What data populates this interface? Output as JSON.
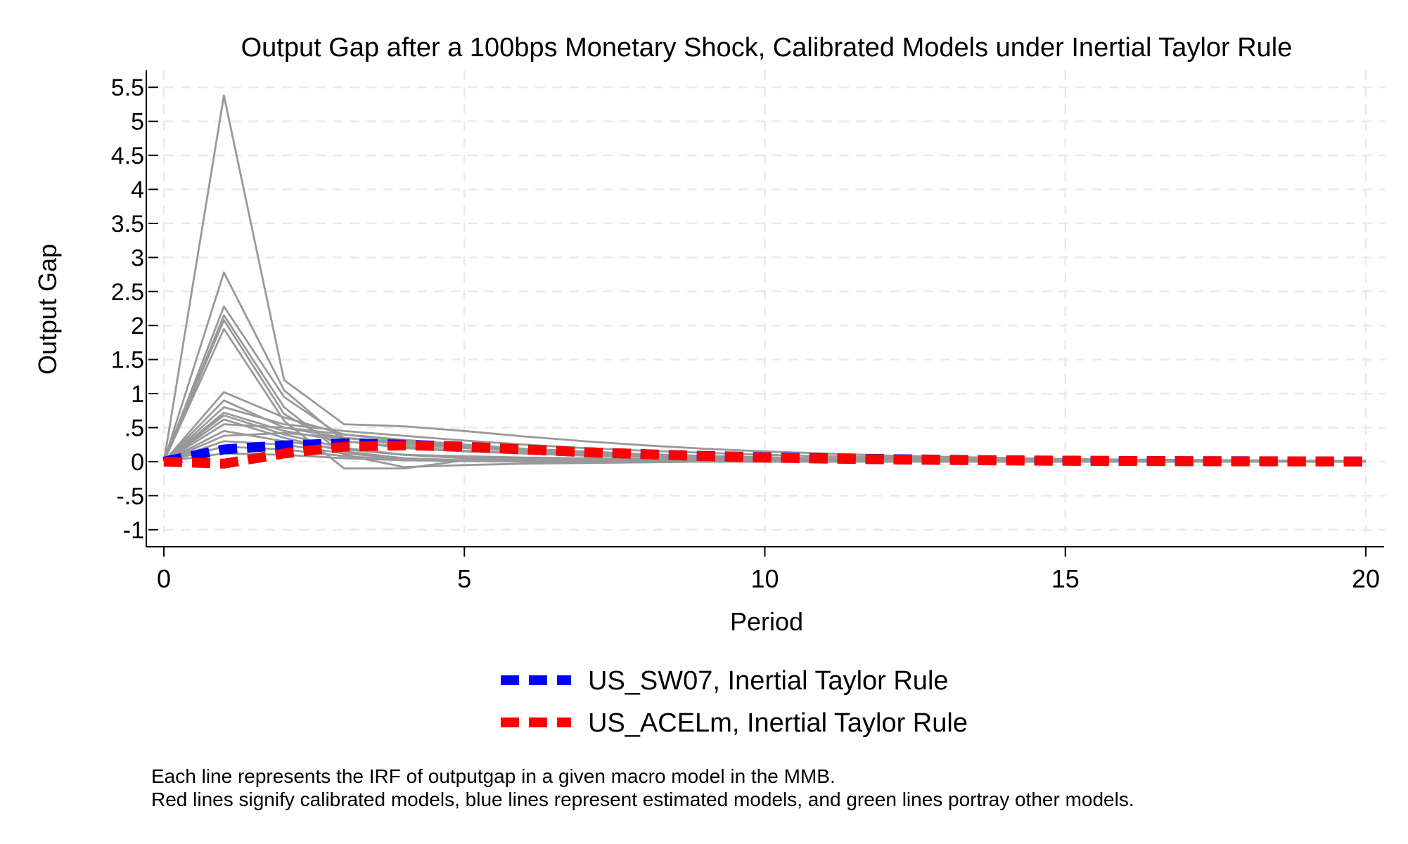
{
  "chart_data": {
    "type": "line",
    "title": "Output Gap after a 100bps Monetary Shock, Calibrated Models under Inertial Taylor Rule",
    "xlabel": "Period",
    "ylabel": "Output Gap",
    "xlim": [
      0,
      20
    ],
    "ylim": [
      -1,
      5.5
    ],
    "x_ticks": [
      0,
      5,
      10,
      15,
      20
    ],
    "x_tick_labels": [
      "0",
      "5",
      "10",
      "15",
      "20"
    ],
    "y_ticks": [
      -1,
      -0.5,
      0,
      0.5,
      1,
      1.5,
      2,
      2.5,
      3,
      3.5,
      4,
      4.5,
      5,
      5.5
    ],
    "y_tick_labels": [
      "-1",
      "-.5",
      "0",
      ".5",
      "1",
      "1.5",
      "2",
      "2.5",
      "3",
      "3.5",
      "4",
      "4.5",
      "5",
      "5.5"
    ],
    "grid": true,
    "legend_position": "bottom",
    "x": [
      0,
      1,
      2,
      3,
      4,
      5,
      6,
      7,
      8,
      9,
      10,
      11,
      12,
      13,
      14,
      15,
      16,
      17,
      18,
      19,
      20
    ],
    "background_series_color": "#999999",
    "background_series": [
      [
        0,
        5.38,
        1.2,
        0.55,
        0.52,
        0.45,
        0.37,
        0.3,
        0.24,
        0.19,
        0.15,
        0.12,
        0.09,
        0.07,
        0.055,
        0.04,
        0.03,
        0.025,
        0.02,
        0.015,
        0.01
      ],
      [
        0,
        2.78,
        1.05,
        0.3,
        0.2,
        0.15,
        0.12,
        0.09,
        0.07,
        0.05,
        0.04,
        0.03,
        0.02,
        0.015,
        0.01,
        0.008,
        0.006,
        0.004,
        0.003,
        0.002,
        0.001
      ],
      [
        0,
        2.28,
        0.95,
        0.35,
        0.25,
        0.2,
        0.15,
        0.11,
        0.08,
        0.06,
        0.045,
        0.03,
        0.02,
        0.015,
        0.01,
        0.008,
        0.006,
        0.004,
        0.003,
        0.002,
        0.001
      ],
      [
        0,
        2.15,
        0.8,
        0.1,
        -0.08,
        -0.05,
        -0.03,
        -0.02,
        -0.01,
        0,
        0,
        0,
        0,
        0,
        0,
        0,
        0,
        0,
        0,
        0,
        0
      ],
      [
        0,
        2.08,
        0.7,
        0.2,
        0.1,
        0.08,
        0.06,
        0.05,
        0.04,
        0.03,
        0.02,
        0.015,
        0.01,
        0.008,
        0.006,
        0.004,
        0.003,
        0.002,
        0.001,
        0.001,
        0
      ],
      [
        0,
        1.95,
        0.6,
        -0.1,
        -0.1,
        0.02,
        0.03,
        0.02,
        0.015,
        0.01,
        0.008,
        0.006,
        0.004,
        0.003,
        0.002,
        0.001,
        0.001,
        0,
        0,
        0,
        0
      ],
      [
        0,
        1.02,
        0.65,
        0.4,
        0.3,
        0.22,
        0.16,
        0.12,
        0.09,
        0.07,
        0.05,
        0.04,
        0.03,
        0.02,
        0.015,
        0.01,
        0.008,
        0.006,
        0.004,
        0.003,
        0.002
      ],
      [
        0,
        0.9,
        0.5,
        0.35,
        0.28,
        0.22,
        0.17,
        0.13,
        0.1,
        0.08,
        0.06,
        0.045,
        0.035,
        0.025,
        0.02,
        0.015,
        0.01,
        0.008,
        0.006,
        0.004,
        0.003
      ],
      [
        0,
        0.8,
        0.55,
        0.45,
        0.38,
        0.31,
        0.25,
        0.2,
        0.16,
        0.13,
        0.1,
        0.08,
        0.065,
        0.05,
        0.04,
        0.03,
        0.025,
        0.02,
        0.015,
        0.01,
        0.008
      ],
      [
        0,
        0.72,
        0.45,
        0.3,
        0.22,
        0.16,
        0.12,
        0.09,
        0.07,
        0.05,
        0.04,
        0.03,
        0.02,
        0.015,
        0.01,
        0.008,
        0.006,
        0.004,
        0.003,
        0.002,
        0.001
      ],
      [
        0,
        0.68,
        0.4,
        0.2,
        0.1,
        0.05,
        0.02,
        0.01,
        0.005,
        0,
        0,
        0,
        0,
        0,
        0,
        0,
        0,
        0,
        0,
        0,
        0
      ],
      [
        0,
        0.62,
        0.35,
        0.15,
        0.05,
        0.02,
        0,
        -0.01,
        -0.01,
        0,
        0,
        0,
        0,
        0,
        0,
        0,
        0,
        0,
        0,
        0,
        0
      ],
      [
        0,
        0.55,
        0.5,
        0.4,
        0.32,
        0.25,
        0.19,
        0.15,
        0.11,
        0.085,
        0.065,
        0.05,
        0.038,
        0.028,
        0.02,
        0.015,
        0.011,
        0.008,
        0.006,
        0.004,
        0.003
      ],
      [
        0,
        0.45,
        0.3,
        0.18,
        0.1,
        0.06,
        0.04,
        0.02,
        0.01,
        0.005,
        0,
        0,
        0,
        0,
        0,
        0,
        0,
        0,
        0,
        0,
        0
      ],
      [
        0,
        0.38,
        0.42,
        0.35,
        0.28,
        0.21,
        0.16,
        0.12,
        0.09,
        0.07,
        0.05,
        0.04,
        0.03,
        0.02,
        0.015,
        0.01,
        0.008,
        0.006,
        0.004,
        0.003,
        0.002
      ],
      [
        0,
        0.3,
        0.25,
        0.12,
        0.05,
        0.02,
        0.01,
        0,
        0,
        0,
        0,
        0,
        0,
        0,
        0,
        0,
        0,
        0,
        0,
        0,
        0
      ],
      [
        0,
        0.22,
        0.18,
        0.08,
        0.03,
        0.01,
        0,
        0,
        0,
        0,
        0,
        0,
        0,
        0,
        0,
        0,
        0,
        0,
        0,
        0,
        0
      ],
      [
        0,
        0.12,
        0.1,
        0.05,
        0.02,
        0.01,
        0,
        0,
        0,
        0,
        0,
        0,
        0,
        0,
        0,
        0,
        0,
        0,
        0,
        0,
        0
      ]
    ],
    "series": [
      {
        "name": "US_SW07, Inertial Taylor Rule",
        "color": "#0000ff",
        "values": [
          0,
          0.18,
          0.24,
          0.27,
          0.25,
          0.22,
          0.18,
          0.14,
          0.11,
          0.085,
          0.065,
          0.05,
          0.038,
          0.028,
          0.02,
          0.015,
          0.011,
          0.008,
          0.006,
          0.004,
          0.003
        ]
      },
      {
        "name": "US_ACELm, Inertial Taylor Rule",
        "color": "#ff0000",
        "values": [
          0,
          -0.03,
          0.12,
          0.22,
          0.24,
          0.22,
          0.18,
          0.14,
          0.11,
          0.08,
          0.06,
          0.045,
          0.033,
          0.024,
          0.017,
          0.012,
          0.009,
          0.006,
          0.004,
          0.003,
          0.002
        ]
      }
    ]
  },
  "notes": {
    "line1": "Each line represents the IRF of outputgap in a given macro model in the MMB.",
    "line2": "Red lines signify calibrated models, blue lines represent estimated models, and green lines portray other models."
  }
}
